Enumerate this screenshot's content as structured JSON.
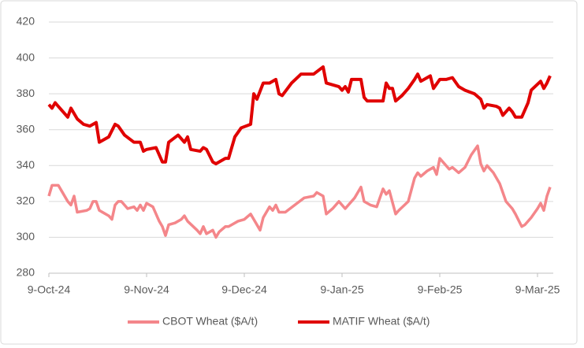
{
  "chart_data": {
    "type": "line",
    "xlim": [
      0,
      160
    ],
    "xticks": [
      {
        "value": 0,
        "label": "9-Oct-24"
      },
      {
        "value": 31,
        "label": "9-Nov-24"
      },
      {
        "value": 62,
        "label": "9-Dec-24"
      },
      {
        "value": 93,
        "label": "9-Jan-25"
      },
      {
        "value": 124,
        "label": "9-Feb-25"
      },
      {
        "value": 155,
        "label": "9-Mar-25"
      }
    ],
    "ylim": [
      280,
      420
    ],
    "yticks": [
      280,
      300,
      320,
      340,
      360,
      380,
      400,
      420
    ],
    "grid": true,
    "legend": "bottom",
    "series": [
      {
        "name": "CBOT Wheat ($A/t)",
        "color": "#f4868a",
        "x": [
          0,
          1,
          3,
          4,
          6,
          7,
          8,
          9,
          12,
          13,
          14,
          15,
          16,
          19,
          20,
          21,
          22,
          23,
          25,
          27,
          28,
          29,
          30,
          31,
          33,
          34,
          35,
          36,
          37,
          38,
          40,
          42,
          43,
          44,
          47,
          48,
          49,
          50,
          52,
          53,
          54,
          56,
          57,
          58,
          60,
          62,
          64,
          65,
          67,
          68,
          70,
          71,
          72,
          73,
          75,
          78,
          81,
          84,
          85,
          87,
          88,
          90,
          92,
          94,
          97,
          99,
          100,
          102,
          104,
          106,
          107,
          108,
          110,
          111,
          114,
          116,
          117,
          118,
          120,
          122,
          123,
          124,
          127,
          128,
          130,
          132,
          134,
          136,
          137,
          138,
          139,
          141,
          143,
          145,
          147,
          148,
          150,
          151,
          153,
          155,
          156,
          157,
          158,
          159
        ],
        "values": [
          323,
          329,
          329,
          326,
          320,
          318,
          323,
          314,
          315,
          316,
          320,
          320,
          315,
          312,
          310,
          318,
          320,
          320,
          316,
          317,
          315,
          318,
          315,
          319,
          317,
          313,
          309,
          306,
          301,
          307,
          308,
          310,
          312,
          309,
          304,
          302,
          306,
          302,
          304,
          300,
          303,
          306,
          306,
          307,
          309,
          310,
          313,
          310,
          304,
          311,
          317,
          315,
          318,
          314,
          314,
          318,
          322,
          323,
          325,
          323,
          313,
          316,
          320,
          316,
          322,
          328,
          320,
          318,
          317,
          327,
          324,
          326,
          313,
          315,
          320,
          333,
          336,
          334,
          337,
          339,
          335,
          344,
          338,
          339,
          336,
          339,
          346,
          351,
          341,
          337,
          340,
          336,
          330,
          320,
          316,
          313,
          306,
          307,
          311,
          316,
          319,
          315,
          323,
          328
        ]
      },
      {
        "name": "MATIF Wheat ($A/t)",
        "color": "#e00000",
        "x": [
          0,
          1,
          2,
          4,
          6,
          7,
          9,
          11,
          13,
          15,
          16,
          19,
          21,
          22,
          24,
          27,
          29,
          30,
          31,
          34,
          36,
          37,
          38,
          41,
          43,
          44,
          45,
          48,
          49,
          50,
          52,
          53,
          56,
          57,
          59,
          61,
          64,
          65,
          66,
          68,
          70,
          72,
          73,
          74,
          77,
          80,
          84,
          87,
          88,
          92,
          93,
          94,
          95,
          96,
          99,
          100,
          101,
          103,
          106,
          107,
          108,
          109,
          110,
          112,
          114,
          116,
          117,
          118,
          120,
          121,
          122,
          124,
          126,
          128,
          130,
          132,
          135,
          137,
          138,
          139,
          142,
          143,
          144,
          146,
          147,
          148,
          150,
          152,
          153,
          156,
          157,
          158,
          159
        ],
        "values": [
          374,
          372,
          375,
          371,
          367,
          372,
          366,
          363,
          362,
          364,
          353,
          356,
          363,
          362,
          357,
          353,
          353,
          348,
          349,
          350,
          342,
          342,
          353,
          357,
          353,
          356,
          349,
          348,
          350,
          349,
          342,
          341,
          344,
          344,
          356,
          361,
          363,
          380,
          377,
          386,
          386,
          388,
          380,
          379,
          386,
          391,
          391,
          395,
          386,
          384,
          382,
          384,
          381,
          388,
          388,
          378,
          376,
          376,
          376,
          386,
          383,
          383,
          376,
          379,
          383,
          388,
          391,
          387,
          389,
          390,
          383,
          388,
          388,
          389,
          384,
          382,
          380,
          377,
          372,
          374,
          373,
          372,
          368,
          372,
          370,
          367,
          367,
          375,
          382,
          387,
          383,
          386,
          390
        ]
      }
    ]
  }
}
